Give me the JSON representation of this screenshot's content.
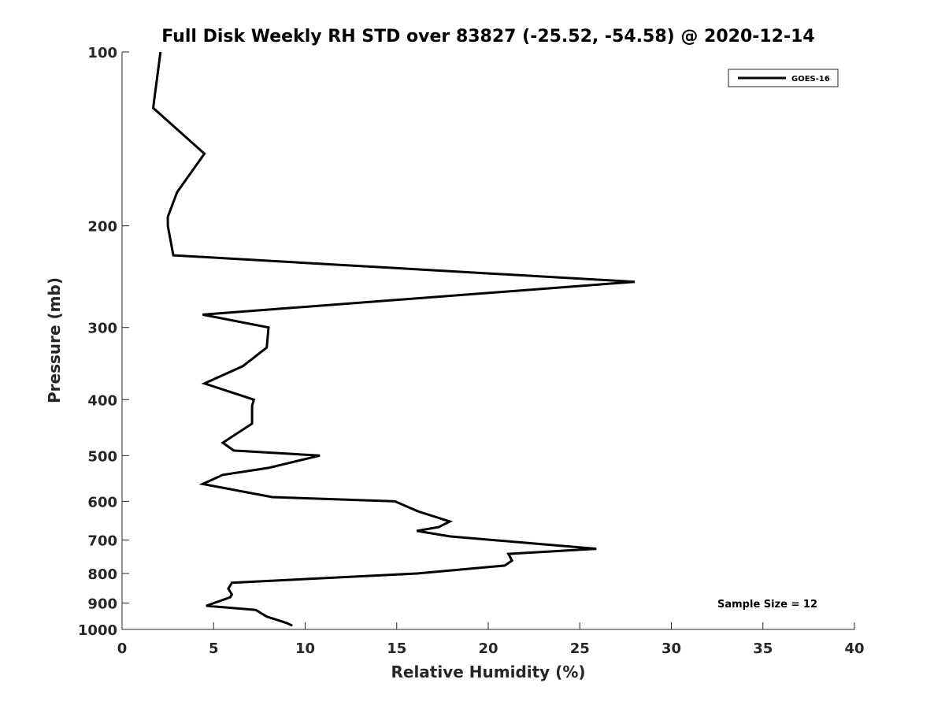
{
  "chart_data": {
    "type": "line",
    "title": "Full Disk Weekly RH STD over 83827 (-25.52, -54.58) @ 2020-12-14",
    "xlabel": "Relative Humidity (%)",
    "ylabel": "Pressure (mb)",
    "xlim": [
      0,
      40
    ],
    "ylim": [
      100,
      1000
    ],
    "y_scale": "log",
    "y_reversed": true,
    "x_ticks": [
      0,
      5,
      10,
      15,
      20,
      25,
      30,
      35,
      40
    ],
    "y_ticks": [
      100,
      200,
      300,
      400,
      500,
      600,
      700,
      800,
      900,
      1000
    ],
    "grid": false,
    "legend_position": "top-right",
    "annotation": "Sample Size = 12",
    "series": [
      {
        "name": "GOES-16",
        "color": "#000000",
        "points": [
          [
            2.1,
            100
          ],
          [
            1.7,
            125
          ],
          [
            4.5,
            150
          ],
          [
            3.0,
            175
          ],
          [
            2.5,
            193
          ],
          [
            2.5,
            200
          ],
          [
            2.8,
            225
          ],
          [
            28.0,
            250
          ],
          [
            4.4,
            285
          ],
          [
            8.0,
            300
          ],
          [
            7.9,
            325
          ],
          [
            6.6,
            350
          ],
          [
            4.5,
            375
          ],
          [
            7.2,
            400
          ],
          [
            7.1,
            410
          ],
          [
            7.1,
            440
          ],
          [
            5.5,
            475
          ],
          [
            6.1,
            490
          ],
          [
            10.8,
            500
          ],
          [
            8.0,
            525
          ],
          [
            5.5,
            540
          ],
          [
            4.4,
            560
          ],
          [
            8.2,
            590
          ],
          [
            14.9,
            600
          ],
          [
            16.2,
            625
          ],
          [
            17.9,
            650
          ],
          [
            17.3,
            665
          ],
          [
            16.1,
            675
          ],
          [
            17.9,
            690
          ],
          [
            25.9,
            725
          ],
          [
            21.1,
            740
          ],
          [
            21.3,
            760
          ],
          [
            20.9,
            775
          ],
          [
            16.1,
            800
          ],
          [
            6.0,
            830
          ],
          [
            5.8,
            850
          ],
          [
            6.0,
            870
          ],
          [
            5.9,
            880
          ],
          [
            4.6,
            910
          ],
          [
            7.3,
            925
          ],
          [
            7.9,
            950
          ],
          [
            9.0,
            975
          ],
          [
            9.3,
            985
          ]
        ]
      }
    ]
  }
}
